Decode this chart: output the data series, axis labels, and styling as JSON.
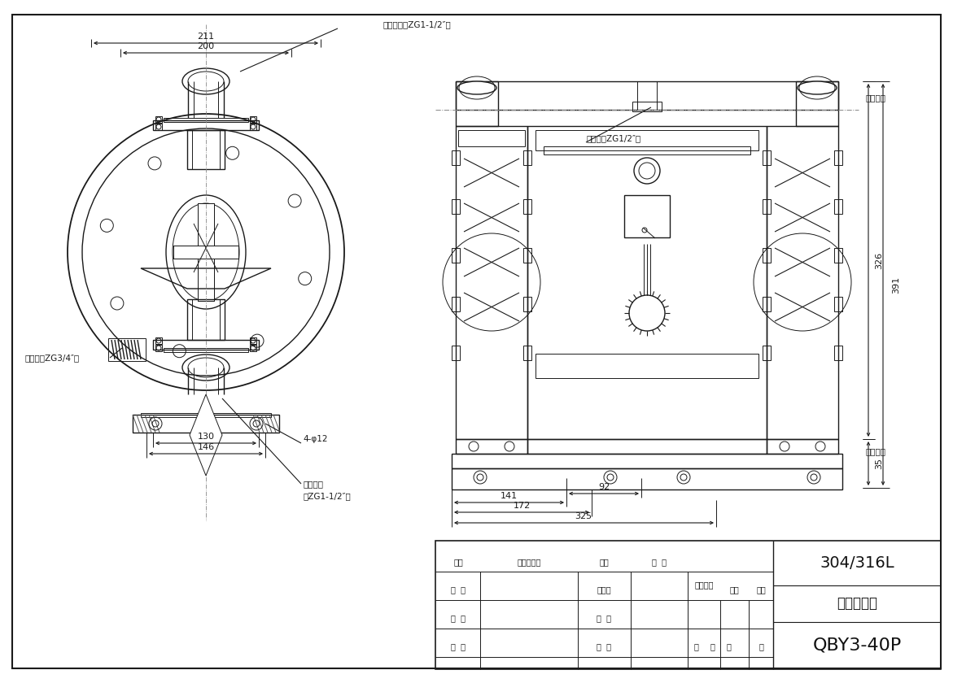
{
  "bg_color": "#ffffff",
  "line_color": "#1a1a1a",
  "label_material_outlet": "物料出口（ZG1-1/2″）",
  "label_material_inlet": "物料进口",
  "label_material_inlet2": "（ZG1-1/2″）",
  "label_muffler": "消声器（ZG3/4″）",
  "label_air_inlet": "进气口（ZG1/2″）",
  "label_outlet_side": "（出口）",
  "label_inlet_side": "（进口）",
  "label_4phi12": "4-φ12",
  "dim_211": "211",
  "dim_200": "200",
  "dim_130": "130",
  "dim_146": "146",
  "dim_326": "326",
  "dim_391": "391",
  "dim_35": "35",
  "dim_141": "141",
  "dim_172": "172",
  "dim_92": "92",
  "dim_325": "325",
  "title_304": "304/316L",
  "title_anzhuang": "安装尺寸图",
  "title_model": "QBY3-40P",
  "tb_biaoji": "标记",
  "tb_gengwei": "更改文件号",
  "tb_qianzi": "签字",
  "tb_riqi": "日  期",
  "tb_sheji": "设  计",
  "tb_biaozhunhua": "标准化",
  "tb_tuyangbiaoji": "图样标记",
  "tb_zhongliang": "重量",
  "tb_bili": "比例",
  "tb_shenhe": "审  核",
  "tb_pizhun": "批  准",
  "tb_gongyi": "工  艺",
  "tb_gong": "共",
  "tb_ye": "页",
  "tb_di": "第",
  "tb_ye2": "页"
}
